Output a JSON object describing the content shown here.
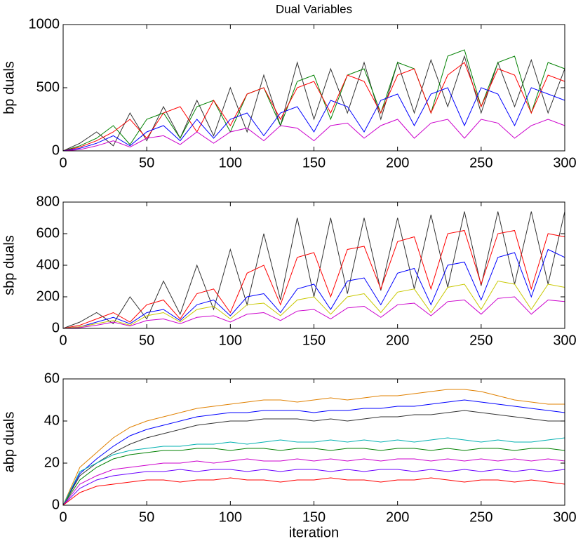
{
  "chart_data": [
    {
      "type": "line",
      "title": "Dual Variables",
      "ylabel": "bp duals",
      "x": [
        0,
        10,
        20,
        30,
        40,
        50,
        60,
        70,
        80,
        90,
        100,
        110,
        120,
        130,
        140,
        150,
        160,
        170,
        180,
        190,
        200,
        210,
        220,
        230,
        240,
        250,
        260,
        270,
        280,
        290,
        300
      ],
      "xlim": [
        0,
        300
      ],
      "xticks": [
        0,
        50,
        100,
        150,
        200,
        250,
        300
      ],
      "ylim": [
        0,
        1000
      ],
      "yticks": [
        0,
        500,
        1000
      ],
      "series": [
        {
          "color": "#333333",
          "values": [
            0,
            60,
            150,
            40,
            300,
            80,
            350,
            100,
            400,
            120,
            500,
            150,
            600,
            200,
            700,
            250,
            650,
            300,
            700,
            250,
            700,
            300,
            720,
            350,
            750,
            300,
            700,
            350,
            720,
            300,
            650
          ]
        },
        {
          "color": "#008000",
          "values": [
            0,
            40,
            100,
            200,
            50,
            250,
            300,
            100,
            350,
            400,
            150,
            450,
            500,
            200,
            550,
            600,
            250,
            600,
            650,
            300,
            700,
            650,
            300,
            750,
            800,
            350,
            700,
            750,
            300,
            700,
            650
          ]
        },
        {
          "color": "#ff0000",
          "values": [
            0,
            30,
            80,
            150,
            250,
            100,
            300,
            350,
            150,
            400,
            200,
            450,
            500,
            250,
            500,
            550,
            300,
            600,
            550,
            300,
            600,
            650,
            300,
            600,
            700,
            350,
            650,
            600,
            300,
            600,
            550
          ]
        },
        {
          "color": "#0000ff",
          "values": [
            0,
            20,
            60,
            120,
            40,
            150,
            200,
            80,
            250,
            100,
            250,
            300,
            120,
            300,
            350,
            150,
            400,
            350,
            150,
            400,
            450,
            200,
            450,
            500,
            200,
            500,
            450,
            200,
            500,
            450,
            400
          ]
        },
        {
          "color": "#cc00cc",
          "values": [
            0,
            10,
            40,
            80,
            30,
            100,
            120,
            50,
            150,
            60,
            150,
            180,
            80,
            200,
            180,
            80,
            200,
            220,
            100,
            200,
            250,
            100,
            220,
            250,
            100,
            250,
            220,
            100,
            200,
            250,
            200
          ]
        }
      ]
    },
    {
      "type": "line",
      "ylabel": "sbp duals",
      "x": [
        0,
        10,
        20,
        30,
        40,
        50,
        60,
        70,
        80,
        90,
        100,
        110,
        120,
        130,
        140,
        150,
        160,
        170,
        180,
        190,
        200,
        210,
        220,
        230,
        240,
        250,
        260,
        270,
        280,
        290,
        300
      ],
      "xlim": [
        0,
        300
      ],
      "xticks": [
        0,
        50,
        100,
        150,
        200,
        250,
        300
      ],
      "ylim": [
        0,
        800
      ],
      "yticks": [
        0,
        200,
        400,
        600,
        800
      ],
      "series": [
        {
          "color": "#333333",
          "values": [
            0,
            40,
            100,
            30,
            200,
            60,
            300,
            90,
            400,
            120,
            500,
            150,
            600,
            180,
            700,
            200,
            700,
            220,
            700,
            240,
            700,
            250,
            720,
            260,
            740,
            270,
            740,
            280,
            740,
            280,
            740
          ]
        },
        {
          "color": "#ff0000",
          "values": [
            0,
            20,
            60,
            100,
            40,
            150,
            180,
            60,
            220,
            250,
            100,
            350,
            400,
            150,
            450,
            480,
            200,
            500,
            520,
            250,
            550,
            580,
            250,
            600,
            620,
            280,
            600,
            620,
            250,
            600,
            580
          ]
        },
        {
          "color": "#0000ff",
          "values": [
            0,
            10,
            40,
            70,
            30,
            100,
            120,
            50,
            150,
            180,
            80,
            200,
            220,
            100,
            250,
            280,
            120,
            300,
            320,
            150,
            350,
            380,
            150,
            400,
            420,
            180,
            450,
            480,
            200,
            500,
            450
          ]
        },
        {
          "color": "#c8c800",
          "values": [
            0,
            10,
            30,
            50,
            20,
            80,
            100,
            40,
            120,
            140,
            60,
            150,
            160,
            80,
            180,
            200,
            90,
            200,
            220,
            100,
            230,
            250,
            100,
            260,
            280,
            120,
            300,
            280,
            120,
            280,
            260
          ]
        },
        {
          "color": "#cc00cc",
          "values": [
            0,
            5,
            20,
            40,
            15,
            50,
            60,
            30,
            70,
            80,
            40,
            90,
            100,
            50,
            110,
            120,
            60,
            130,
            140,
            70,
            150,
            160,
            80,
            170,
            180,
            90,
            190,
            200,
            90,
            180,
            170
          ]
        }
      ]
    },
    {
      "type": "line",
      "ylabel": "abp duals",
      "xlabel": "iteration",
      "x": [
        0,
        10,
        20,
        30,
        40,
        50,
        60,
        70,
        80,
        90,
        100,
        110,
        120,
        130,
        140,
        150,
        160,
        170,
        180,
        190,
        200,
        210,
        220,
        230,
        240,
        250,
        260,
        270,
        280,
        290,
        300
      ],
      "xlim": [
        0,
        300
      ],
      "xticks": [
        0,
        50,
        100,
        150,
        200,
        250,
        300
      ],
      "ylim": [
        0,
        60
      ],
      "yticks": [
        0,
        20,
        40,
        60
      ],
      "series": [
        {
          "color": "#e08000",
          "values": [
            0,
            18,
            25,
            32,
            37,
            40,
            42,
            44,
            46,
            47,
            48,
            49,
            50,
            50,
            49,
            50,
            51,
            50,
            51,
            52,
            52,
            53,
            54,
            55,
            55,
            54,
            52,
            50,
            49,
            48,
            48
          ]
        },
        {
          "color": "#0000ff",
          "values": [
            0,
            15,
            22,
            28,
            33,
            36,
            38,
            40,
            42,
            43,
            44,
            44,
            45,
            45,
            45,
            44,
            45,
            45,
            46,
            46,
            47,
            47,
            48,
            49,
            50,
            49,
            48,
            47,
            46,
            45,
            44
          ]
        },
        {
          "color": "#333333",
          "values": [
            0,
            14,
            20,
            25,
            29,
            32,
            34,
            36,
            38,
            39,
            40,
            40,
            41,
            41,
            41,
            40,
            41,
            40,
            41,
            42,
            42,
            43,
            43,
            44,
            45,
            44,
            43,
            42,
            41,
            40,
            40
          ]
        },
        {
          "color": "#00b0b0",
          "values": [
            0,
            16,
            20,
            24,
            26,
            27,
            28,
            28,
            29,
            29,
            30,
            29,
            30,
            31,
            30,
            30,
            31,
            30,
            31,
            30,
            31,
            30,
            31,
            32,
            31,
            30,
            31,
            30,
            30,
            31,
            32
          ]
        },
        {
          "color": "#008000",
          "values": [
            0,
            12,
            18,
            22,
            24,
            25,
            26,
            26,
            27,
            27,
            26,
            27,
            27,
            26,
            27,
            27,
            26,
            27,
            27,
            26,
            27,
            27,
            26,
            27,
            26,
            27,
            27,
            26,
            27,
            27,
            26
          ]
        },
        {
          "color": "#cc00cc",
          "values": [
            0,
            10,
            14,
            17,
            18,
            19,
            20,
            20,
            21,
            20,
            21,
            22,
            21,
            21,
            22,
            21,
            22,
            21,
            22,
            21,
            22,
            22,
            21,
            22,
            21,
            22,
            21,
            22,
            21,
            22,
            21
          ]
        },
        {
          "color": "#6a00ff",
          "values": [
            0,
            8,
            12,
            14,
            15,
            16,
            16,
            17,
            16,
            17,
            17,
            16,
            17,
            16,
            17,
            17,
            16,
            17,
            16,
            17,
            17,
            16,
            17,
            16,
            17,
            16,
            17,
            16,
            17,
            16,
            17
          ]
        },
        {
          "color": "#ff0000",
          "values": [
            0,
            6,
            9,
            10,
            11,
            12,
            12,
            11,
            12,
            12,
            13,
            12,
            12,
            11,
            12,
            12,
            13,
            12,
            12,
            11,
            12,
            12,
            13,
            12,
            11,
            12,
            12,
            11,
            12,
            11,
            10
          ]
        }
      ]
    }
  ]
}
